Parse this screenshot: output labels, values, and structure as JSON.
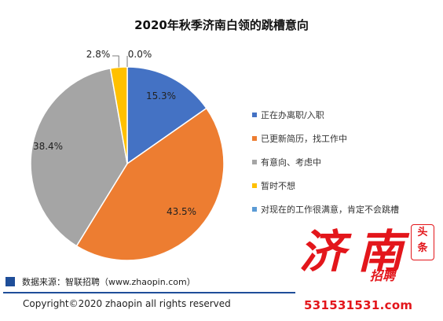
{
  "chart_data": {
    "type": "pie",
    "title": "2020年秋季济南白领的跳槽意向",
    "slices": [
      {
        "label": "正在办离职/入职",
        "value": 15.3,
        "label_text": "15.3%",
        "color": "#4472c4"
      },
      {
        "label": "已更新简历，找工作中",
        "value": 43.5,
        "label_text": "43.5%",
        "color": "#ed7d31"
      },
      {
        "label": "有意向、考虑中",
        "value": 38.4,
        "label_text": "38.4%",
        "color": "#a5a5a5"
      },
      {
        "label": "暂时不想",
        "value": 2.8,
        "label_text": "2.8%",
        "color": "#ffc000"
      },
      {
        "label": "对现在的工作很满意，肯定不会跳槽",
        "value": 0.0,
        "label_text": "0.0%",
        "color": "#5b9bd5"
      }
    ],
    "legend_position": "right"
  },
  "footer": {
    "source": "数据来源：智联招聘（www.zhaopin.com）",
    "copyright": "Copyright©2020 zhaopin all rights reserved"
  },
  "watermark": {
    "char1": "济",
    "char2": "南",
    "badge_top": "头",
    "badge_bottom": "条",
    "brand": "招聘",
    "url": "531531531.com"
  }
}
